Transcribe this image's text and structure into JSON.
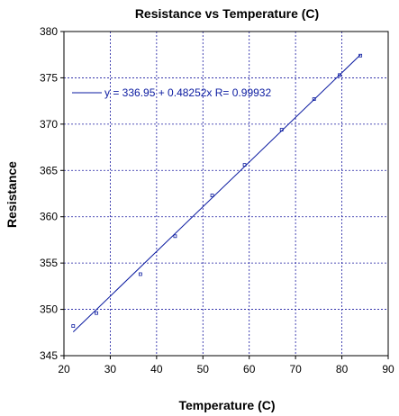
{
  "chart_data": {
    "type": "scatter",
    "title": "Resistance vs Temperature (C)",
    "xlabel": "Temperature (C)",
    "ylabel": "Resistance",
    "xlim": [
      20,
      90
    ],
    "ylim": [
      345,
      380
    ],
    "xticks": [
      "20",
      "30",
      "40",
      "50",
      "60",
      "70",
      "80",
      "90"
    ],
    "yticks": [
      "345",
      "350",
      "355",
      "360",
      "365",
      "370",
      "375",
      "380"
    ],
    "grid": true,
    "legend_placement": "top-left",
    "series": [
      {
        "x": [
          22,
          27,
          36.5,
          44,
          52,
          59,
          67,
          74,
          79.5,
          84
        ],
        "y": [
          348.2,
          349.6,
          353.8,
          357.9,
          362.3,
          365.6,
          369.4,
          372.7,
          375.3,
          377.4
        ]
      }
    ],
    "fit": {
      "intercept": 336.95,
      "slope": 0.48252,
      "x_range": [
        22,
        84
      ],
      "label": "y = 336.95 + 0.48252x   R= 0.99932"
    },
    "colors": {
      "line": "#0a1aa0",
      "grid": "#1a1aa0",
      "axis": "#000000"
    }
  }
}
